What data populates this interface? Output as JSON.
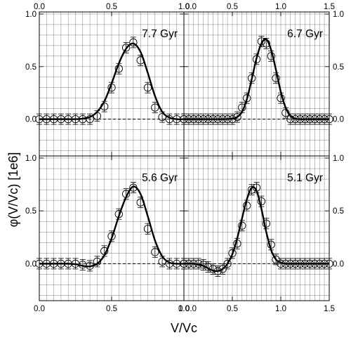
{
  "figure": {
    "ylabel": "φ(V/Vc) [1e6]",
    "xlabel": "V/Vc"
  },
  "chart_data": [
    {
      "type": "scatter",
      "annotation": "7.7 Gyr",
      "xlim": [
        0.0,
        1.0
      ],
      "ylim": [
        -0.35,
        1.02
      ],
      "xticks": [
        "0.0",
        "0.5",
        "1.0"
      ],
      "yticks": [
        "0.0",
        "0.5",
        "1.0"
      ],
      "series": [
        {
          "kind": "points",
          "x": [
            0.0,
            0.05,
            0.1,
            0.15,
            0.2,
            0.25,
            0.3,
            0.35,
            0.4,
            0.45,
            0.5,
            0.55,
            0.6,
            0.65,
            0.7,
            0.75,
            0.8,
            0.85,
            0.9,
            0.95,
            1.0
          ],
          "y": [
            0.0,
            0.0,
            0.0,
            0.0,
            0.0,
            0.0,
            0.0,
            0.0,
            0.03,
            0.12,
            0.3,
            0.48,
            0.68,
            0.73,
            0.56,
            0.3,
            0.11,
            0.02,
            0.0,
            0.0,
            0.0
          ],
          "yerr": 0.05
        },
        {
          "kind": "line",
          "x": [
            0.0,
            0.1,
            0.2,
            0.25,
            0.3,
            0.35,
            0.4,
            0.45,
            0.5,
            0.55,
            0.6,
            0.65,
            0.7,
            0.75,
            0.8,
            0.85,
            0.9,
            0.95,
            1.0
          ],
          "y": [
            0.0,
            0.0,
            0.0,
            0.0,
            0.005,
            0.02,
            0.07,
            0.17,
            0.34,
            0.53,
            0.67,
            0.72,
            0.64,
            0.44,
            0.22,
            0.07,
            0.015,
            0.0,
            0.0
          ]
        }
      ]
    },
    {
      "type": "scatter",
      "annotation": "6.7 Gyr",
      "xlim": [
        0.0,
        1.5
      ],
      "ylim": [
        -0.35,
        1.02
      ],
      "xticks": [
        "0.0",
        "0.5",
        "1.0",
        "1.5"
      ],
      "yticks": [
        "0.0",
        "0.5",
        "1.0"
      ],
      "series": [
        {
          "kind": "points",
          "x": [
            0.0,
            0.05,
            0.1,
            0.15,
            0.2,
            0.25,
            0.3,
            0.35,
            0.4,
            0.45,
            0.5,
            0.55,
            0.6,
            0.65,
            0.7,
            0.75,
            0.8,
            0.85,
            0.9,
            0.95,
            1.0,
            1.05,
            1.1,
            1.15,
            1.2,
            1.25,
            1.3,
            1.35,
            1.4,
            1.45,
            1.5
          ],
          "y": [
            0.0,
            0.0,
            0.0,
            0.0,
            0.0,
            0.0,
            0.0,
            0.0,
            0.0,
            0.0,
            0.0,
            0.02,
            0.11,
            0.2,
            0.39,
            0.57,
            0.74,
            0.72,
            0.6,
            0.39,
            0.2,
            0.06,
            0.0,
            0.0,
            0.0,
            0.0,
            0.0,
            0.0,
            0.0,
            0.0,
            0.0
          ],
          "yerr": 0.05
        },
        {
          "kind": "line",
          "x": [
            0.0,
            0.2,
            0.4,
            0.5,
            0.55,
            0.6,
            0.65,
            0.7,
            0.75,
            0.8,
            0.85,
            0.9,
            0.95,
            1.0,
            1.05,
            1.1,
            1.15,
            1.2,
            1.3,
            1.5
          ],
          "y": [
            0.0,
            0.0,
            0.0,
            0.005,
            0.02,
            0.07,
            0.19,
            0.38,
            0.58,
            0.72,
            0.76,
            0.66,
            0.47,
            0.26,
            0.11,
            0.03,
            0.005,
            0.0,
            0.0,
            0.0
          ]
        }
      ]
    },
    {
      "type": "scatter",
      "annotation": "5.6 Gyr",
      "xlim": [
        0.0,
        1.0
      ],
      "ylim": [
        -0.35,
        1.02
      ],
      "xticks": [
        "0.0",
        "0.5",
        "1.0"
      ],
      "yticks": [
        "0.0",
        "0.5",
        "1.0"
      ],
      "series": [
        {
          "kind": "points",
          "x": [
            0.0,
            0.05,
            0.1,
            0.15,
            0.2,
            0.25,
            0.3,
            0.35,
            0.4,
            0.45,
            0.5,
            0.55,
            0.6,
            0.65,
            0.7,
            0.75,
            0.8,
            0.85,
            0.9,
            0.95,
            1.0
          ],
          "y": [
            0.0,
            0.0,
            0.0,
            0.0,
            0.0,
            0.0,
            -0.01,
            -0.02,
            0.02,
            0.12,
            0.26,
            0.47,
            0.66,
            0.72,
            0.58,
            0.33,
            0.11,
            0.02,
            0.0,
            0.0,
            0.0
          ],
          "yerr": 0.05
        },
        {
          "kind": "line",
          "x": [
            0.0,
            0.1,
            0.2,
            0.25,
            0.3,
            0.35,
            0.4,
            0.45,
            0.5,
            0.55,
            0.6,
            0.65,
            0.7,
            0.75,
            0.8,
            0.85,
            0.9,
            0.95,
            1.0
          ],
          "y": [
            0.0,
            0.0,
            0.0,
            -0.005,
            -0.02,
            -0.025,
            0.0,
            0.08,
            0.24,
            0.45,
            0.63,
            0.73,
            0.66,
            0.45,
            0.22,
            0.07,
            0.01,
            0.0,
            0.0
          ]
        }
      ]
    },
    {
      "type": "scatter",
      "annotation": "5.1 Gyr",
      "xlim": [
        0.0,
        1.5
      ],
      "ylim": [
        -0.35,
        1.02
      ],
      "xticks": [
        "0.0",
        "0.5",
        "1.0",
        "1.5"
      ],
      "yticks": [
        "0.0",
        "0.5",
        "1.0"
      ],
      "series": [
        {
          "kind": "points",
          "x": [
            0.0,
            0.05,
            0.1,
            0.15,
            0.2,
            0.25,
            0.3,
            0.35,
            0.4,
            0.45,
            0.5,
            0.55,
            0.6,
            0.65,
            0.7,
            0.75,
            0.8,
            0.85,
            0.9,
            0.95,
            1.0,
            1.05,
            1.1,
            1.15,
            1.2,
            1.25,
            1.3,
            1.35,
            1.4,
            1.45,
            1.5
          ],
          "y": [
            0.0,
            0.0,
            0.0,
            0.0,
            -0.01,
            -0.03,
            -0.05,
            -0.07,
            -0.05,
            0.0,
            0.1,
            0.19,
            0.36,
            0.55,
            0.7,
            0.72,
            0.59,
            0.38,
            0.18,
            0.04,
            0.0,
            0.0,
            0.0,
            0.0,
            0.0,
            0.0,
            0.0,
            0.0,
            0.0,
            0.0,
            0.0
          ],
          "yerr": 0.05
        },
        {
          "kind": "line",
          "x": [
            0.0,
            0.1,
            0.2,
            0.25,
            0.3,
            0.35,
            0.4,
            0.45,
            0.5,
            0.55,
            0.6,
            0.65,
            0.7,
            0.75,
            0.8,
            0.85,
            0.9,
            0.95,
            1.0,
            1.05,
            1.1,
            1.2,
            1.5
          ],
          "y": [
            0.0,
            0.0,
            -0.02,
            -0.045,
            -0.065,
            -0.07,
            -0.05,
            0.0,
            0.09,
            0.24,
            0.43,
            0.61,
            0.72,
            0.69,
            0.52,
            0.3,
            0.13,
            0.04,
            0.01,
            0.0,
            0.0,
            0.0,
            0.0
          ]
        }
      ]
    }
  ]
}
